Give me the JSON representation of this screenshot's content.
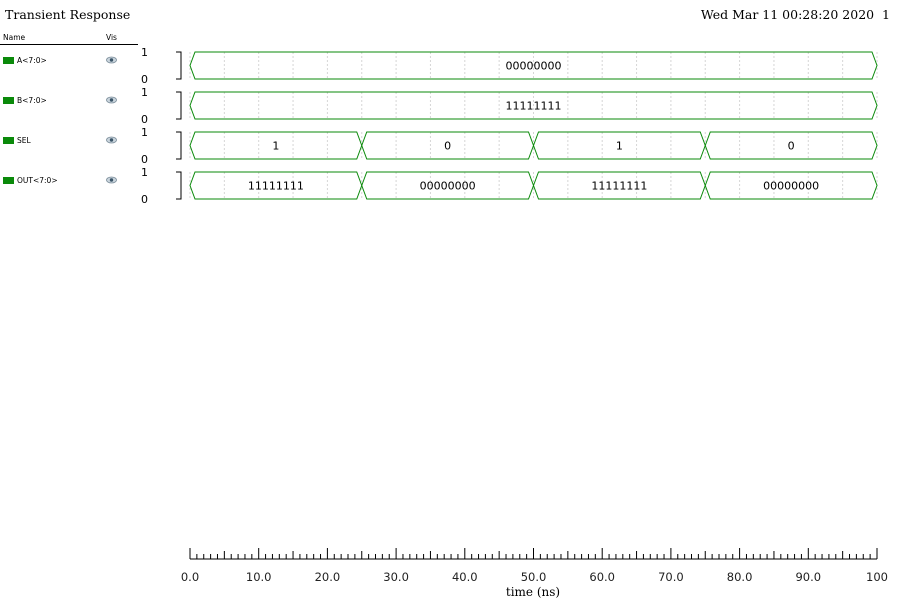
{
  "window": {
    "title": "Transient Response",
    "timestamp": "Wed Mar 11 00:28:20 2020  1"
  },
  "legend": {
    "name_header": "Name",
    "vis_header": "Vis",
    "signal_color": "#0a8a0a"
  },
  "chart_data": {
    "type": "bus-waveform",
    "title": "Transient Response",
    "xlabel": "time (ns)",
    "xlim": [
      0,
      100
    ],
    "x_ticks": [
      "0.0",
      "10.0",
      "20.0",
      "30.0",
      "40.0",
      "50.0",
      "60.0",
      "70.0",
      "80.0",
      "90.0",
      "100"
    ],
    "y_levels": [
      "1",
      "0"
    ],
    "series": [
      {
        "name": "A<7:0>",
        "segments": [
          {
            "start": 0,
            "end": 100,
            "value": "00000000"
          }
        ]
      },
      {
        "name": "B<7:0>",
        "segments": [
          {
            "start": 0,
            "end": 100,
            "value": "11111111"
          }
        ]
      },
      {
        "name": "SEL",
        "segments": [
          {
            "start": 0,
            "end": 25,
            "value": "1"
          },
          {
            "start": 25,
            "end": 50,
            "value": "0"
          },
          {
            "start": 50,
            "end": 75,
            "value": "1"
          },
          {
            "start": 75,
            "end": 100,
            "value": "0"
          }
        ]
      },
      {
        "name": "OUT<7:0>",
        "segments": [
          {
            "start": 0,
            "end": 25,
            "value": "11111111"
          },
          {
            "start": 25,
            "end": 50,
            "value": "00000000"
          },
          {
            "start": 50,
            "end": 75,
            "value": "11111111"
          },
          {
            "start": 75,
            "end": 100,
            "value": "00000000"
          }
        ]
      }
    ]
  }
}
